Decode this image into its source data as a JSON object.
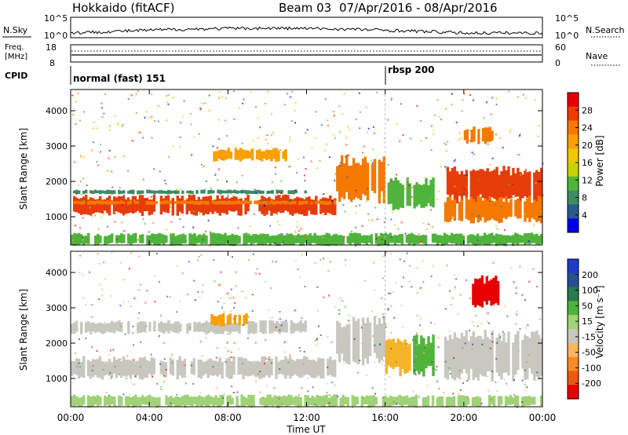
{
  "header": {
    "station": "Hokkaido (fitACF)",
    "beam": "Beam 03",
    "date_range": "07/Apr/2016 - 08/Apr/2016"
  },
  "panels": {
    "nsky": {
      "label": "N.Sky",
      "ticks": [
        "10^5",
        "10^0"
      ]
    },
    "nsearch": {
      "label": "N.Search",
      "ticks": [
        "10^5",
        "10^0"
      ]
    },
    "freq": {
      "label_line1": "Freq.",
      "label_line2": "[MHz]",
      "ticks": [
        "18",
        "8"
      ]
    },
    "nave": {
      "label": "Nave",
      "ticks": [
        "60",
        "0"
      ]
    },
    "cpid": {
      "label": "CPID",
      "modes": [
        {
          "text": "normal (fast) 151",
          "start_hour": 0
        },
        {
          "text": "rbsp 200",
          "start_hour": 16
        }
      ]
    }
  },
  "chart_data": [
    {
      "type": "heatmap",
      "name": "power",
      "ylabel": "Slant Range [km]",
      "xlim_hours": [
        0,
        24
      ],
      "ylim": [
        200,
        4600
      ],
      "y_ticks": [
        "1000",
        "2000",
        "3000",
        "4000"
      ],
      "colorbar_label": "Power [dB]",
      "colorbar_ticks": [
        "28",
        "24",
        "20",
        "16",
        "12",
        "8",
        "4"
      ],
      "colorbar_colors": [
        "#e60000",
        "#f03c00",
        "#f57800",
        "#faa000",
        "#f0c800",
        "#c8d200",
        "#50b43c",
        "#3c8c64",
        "#285a8c",
        "#0000e6"
      ],
      "bands": [
        {
          "x0": 0,
          "x1": 13.5,
          "y0": 1100,
          "y1": 1550,
          "color": "#e63c0a"
        },
        {
          "x0": 0,
          "x1": 13.5,
          "y0": 1350,
          "y1": 1450,
          "color": "#f57800"
        },
        {
          "x0": 0,
          "x1": 12,
          "y0": 1650,
          "y1": 1750,
          "color": "#3c8c64"
        },
        {
          "x0": 7,
          "x1": 11,
          "y0": 2600,
          "y1": 2900,
          "color": "#faa000"
        },
        {
          "x0": 13.5,
          "x1": 16,
          "y0": 1550,
          "y1": 2600,
          "color": "#f57800"
        },
        {
          "x0": 16,
          "x1": 18.5,
          "y0": 1300,
          "y1": 2000,
          "color": "#50b43c"
        },
        {
          "x0": 19,
          "x1": 24,
          "y0": 1500,
          "y1": 2300,
          "color": "#e63c0a"
        },
        {
          "x0": 19,
          "x1": 24,
          "y0": 900,
          "y1": 1500,
          "color": "#f57800"
        },
        {
          "x0": 20,
          "x1": 21.5,
          "y0": 3100,
          "y1": 3500,
          "color": "#f57800"
        },
        {
          "x0": 0,
          "x1": 24,
          "y0": 220,
          "y1": 500,
          "color": "#50b43c"
        }
      ]
    },
    {
      "type": "heatmap",
      "name": "velocity",
      "ylabel": "Slant Range [km]",
      "xlim_hours": [
        0,
        24
      ],
      "ylim": [
        200,
        4600
      ],
      "y_ticks": [
        "1000",
        "2000",
        "3000",
        "4000"
      ],
      "colorbar_label": "Velocity [m s⁻¹]",
      "colorbar_ticks": [
        "200",
        "100",
        "50",
        "15",
        "-15",
        "-50",
        "-100",
        "-200"
      ],
      "colorbar_colors": [
        "#1e3cc8",
        "#28508c",
        "#287850",
        "#50b43c",
        "#a0d278",
        "#c8c8c0",
        "#fab464",
        "#f58c28",
        "#eb5a14",
        "#e60000"
      ],
      "bands": [
        {
          "x0": 0,
          "x1": 13.5,
          "y0": 1050,
          "y1": 1550,
          "color": "#c8c8c0"
        },
        {
          "x0": 13.5,
          "x1": 16,
          "y0": 1550,
          "y1": 2600,
          "color": "#c8c8c0"
        },
        {
          "x0": 0,
          "x1": 12,
          "y0": 2300,
          "y1": 2600,
          "color": "#c8c8c0"
        },
        {
          "x0": 7,
          "x1": 9,
          "y0": 2500,
          "y1": 2800,
          "color": "#faa000"
        },
        {
          "x0": 16,
          "x1": 17.3,
          "y0": 1200,
          "y1": 2100,
          "color": "#f5b428"
        },
        {
          "x0": 17.3,
          "x1": 18.5,
          "y0": 1200,
          "y1": 2100,
          "color": "#50b43c"
        },
        {
          "x0": 19,
          "x1": 24,
          "y0": 1100,
          "y1": 2200,
          "color": "#c8c8c0"
        },
        {
          "x0": 20.3,
          "x1": 21.8,
          "y0": 3100,
          "y1": 3800,
          "color": "#e60000"
        },
        {
          "x0": 0,
          "x1": 24,
          "y0": 220,
          "y1": 500,
          "color": "#a0d278"
        }
      ]
    }
  ],
  "xaxis": {
    "label": "Time UT",
    "ticks": [
      "00:00",
      "04:00",
      "08:00",
      "12:00",
      "16:00",
      "20:00",
      "00:00"
    ]
  }
}
